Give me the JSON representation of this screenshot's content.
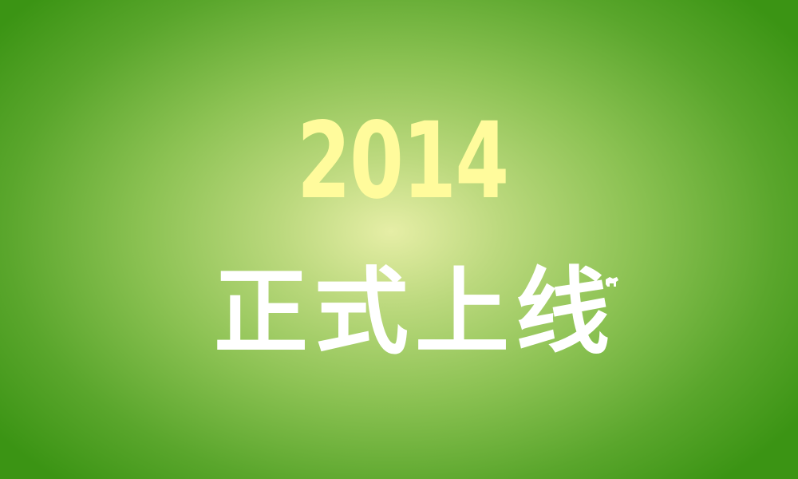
{
  "banner": {
    "year": "2014",
    "tagline": "正式上线",
    "colors": {
      "background_center": "#e6eea6",
      "background_edge": "#3b9414",
      "year_text": "#fffb9c",
      "tagline_text": "#ffffff"
    }
  }
}
